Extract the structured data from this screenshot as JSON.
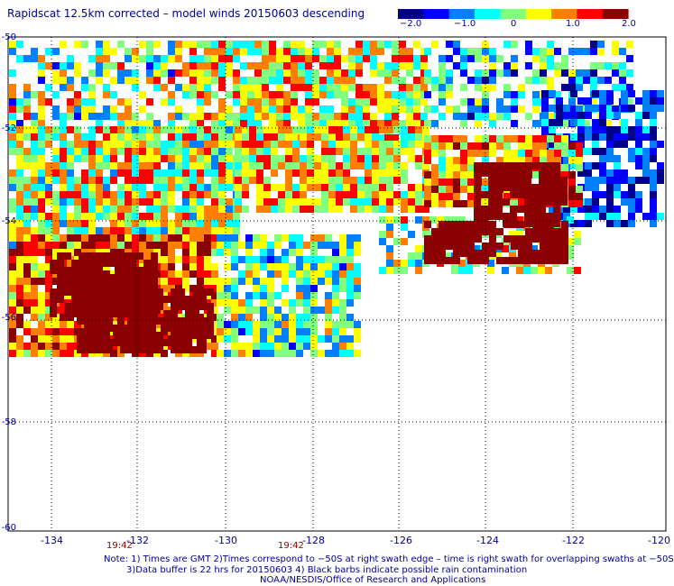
{
  "title": "Rapidscat 12.5km corrected – model winds 20150603 descending",
  "colorbar": {
    "ticks": [
      "−2.0",
      "−1.0",
      "0",
      "1.0",
      "2.0"
    ],
    "colors": [
      "#00008b",
      "#0000ff",
      "#0080ff",
      "#00ffff",
      "#80ff80",
      "#ffff00",
      "#ff8000",
      "#ff0000",
      "#8b0000"
    ]
  },
  "axes": {
    "lat_labels": [
      "-50",
      "-52",
      "-54",
      "-56",
      "-58",
      "-60"
    ],
    "lon_labels": [
      "-134",
      "-132",
      "-130",
      "-128",
      "-126",
      "-124",
      "-122",
      "-120"
    ],
    "lat_range": [
      -60,
      -50
    ],
    "lon_range": [
      -135,
      -120
    ],
    "grid": "dotted"
  },
  "times": [
    "19:42",
    "19:42"
  ],
  "notes": [
    "Note: 1) Times are GMT 2)Times correspond to −50S at right swath edge – time is right swath for overlapping swaths at −50S",
    "3)Data buffer is 22 hrs for 20150603 4) Black barbs indicate possible rain contamination",
    "NOAA/NESDIS/Office of Research and Applications"
  ]
}
